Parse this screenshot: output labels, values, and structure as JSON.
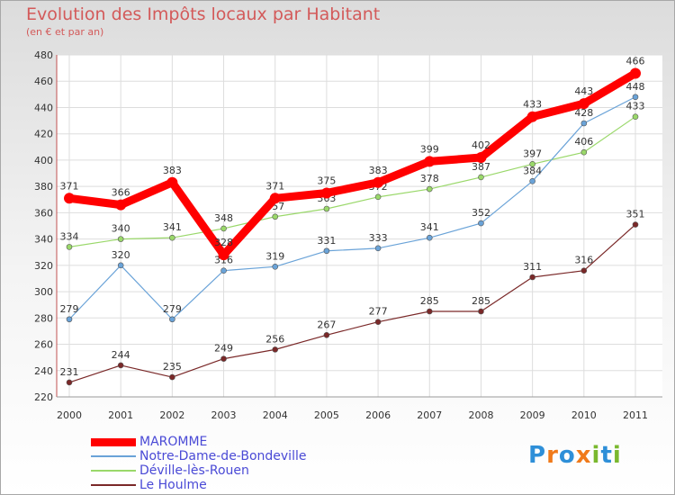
{
  "chart_data": {
    "type": "line",
    "title": "Evolution des Impôts locaux par Habitant",
    "subtitle": "(en € et par an)",
    "x": [
      "2000",
      "2001",
      "2002",
      "2003",
      "2004",
      "2005",
      "2006",
      "2007",
      "2008",
      "2009",
      "2010",
      "2011"
    ],
    "ylim": [
      220,
      480
    ],
    "yticks": [
      220,
      240,
      260,
      280,
      300,
      320,
      340,
      360,
      380,
      400,
      420,
      440,
      460,
      480
    ],
    "grid": true,
    "legend_position": "bottom-left",
    "series": [
      {
        "name": "MAROMME",
        "color": "#ff0000",
        "values": [
          371,
          366,
          383,
          328,
          371,
          375,
          383,
          399,
          402,
          433,
          443,
          466
        ]
      },
      {
        "name": "Notre-Dame-de-Bondeville",
        "color": "#6aa3d8",
        "values": [
          279,
          320,
          279,
          316,
          319,
          331,
          333,
          341,
          352,
          384,
          428,
          448
        ]
      },
      {
        "name": "Déville-lès-Rouen",
        "color": "#9ad86a",
        "values": [
          334,
          340,
          341,
          348,
          357,
          363,
          372,
          378,
          387,
          397,
          406,
          433
        ]
      },
      {
        "name": "Le Houlme",
        "color": "#7a2828",
        "values": [
          231,
          244,
          235,
          249,
          256,
          267,
          277,
          285,
          285,
          311,
          316,
          351
        ]
      }
    ]
  },
  "logo": {
    "text": "Proxiti",
    "letters": [
      "P",
      "r",
      "o",
      "x",
      "i",
      "t",
      "i"
    ],
    "colors": [
      "#2e8fd8",
      "#f07a1a",
      "#2e8fd8",
      "#f07a1a",
      "#7ab82e",
      "#2e8fd8",
      "#7ab82e"
    ]
  }
}
